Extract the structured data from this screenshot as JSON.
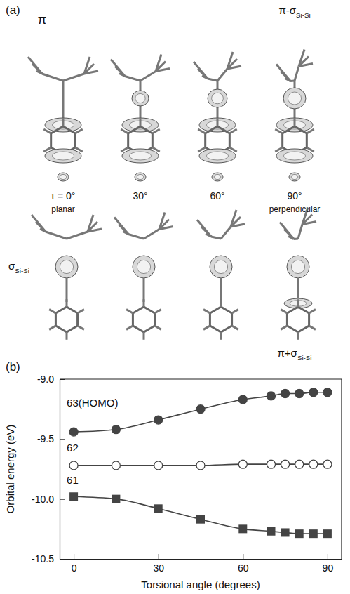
{
  "panel_a": {
    "label": "(a)",
    "top_labels": [
      {
        "text": "π"
      },
      {
        "text": "π-σ",
        "sub": "Si-Si"
      }
    ],
    "angles": [
      "τ = 0°",
      "30°",
      "60°",
      "90°"
    ],
    "geometry_labels": [
      "planar",
      "perpendicular"
    ],
    "bottom_labels": [
      {
        "text": "σ",
        "sub": "Si-Si"
      },
      {
        "text": "π+σ",
        "sub": "Si-Si"
      }
    ]
  },
  "chart_data": {
    "type": "line",
    "panel_label": "(b)",
    "x_label": "Torsional angle (degrees)",
    "y_label": "Orbital energy (eV)",
    "x": [
      0,
      15,
      30,
      45,
      60,
      70,
      75,
      80,
      85,
      90
    ],
    "series": [
      {
        "name": "63(HOMO)",
        "color": "#444444",
        "marker": "circle",
        "line_style": "solid",
        "values": [
          -9.44,
          -9.42,
          -9.34,
          -9.25,
          -9.17,
          -9.14,
          -9.12,
          -9.12,
          -9.11,
          -9.11
        ]
      },
      {
        "name": "62",
        "color": "#444444",
        "marker": "open-circle",
        "line_style": "solid",
        "values": [
          -9.72,
          -9.72,
          -9.72,
          -9.72,
          -9.71,
          -9.71,
          -9.71,
          -9.71,
          -9.71,
          -9.71
        ]
      },
      {
        "name": "61",
        "color": "#444444",
        "marker": "square",
        "line_style": "solid",
        "values": [
          -9.98,
          -10.0,
          -10.08,
          -10.17,
          -10.25,
          -10.27,
          -10.28,
          -10.29,
          -10.29,
          -10.29
        ]
      }
    ],
    "xlim": [
      -5,
      95
    ],
    "xticks": [
      0,
      30,
      60,
      90
    ],
    "ylim": [
      -10.5,
      -9.0
    ],
    "yticks": [
      {
        "value": -9.0,
        "label": "-9.0"
      },
      -9.5,
      {
        "value": -10.0,
        "label": "-10.0"
      },
      -10.5
    ]
  }
}
